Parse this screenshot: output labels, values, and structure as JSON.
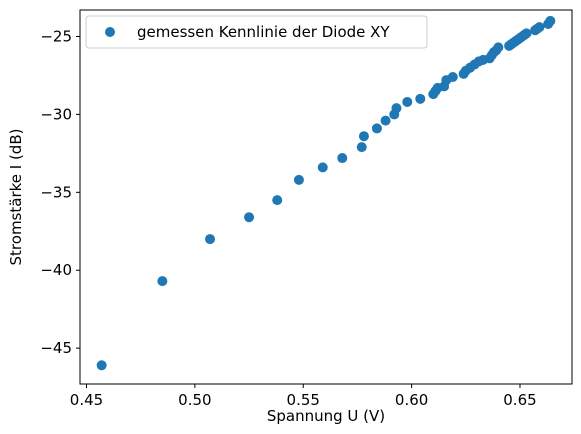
{
  "chart_data": {
    "type": "scatter",
    "title": "",
    "xlabel": "Spannung U (V)",
    "ylabel": "Stromstärke I (dB)",
    "xlim": [
      0.447,
      0.674
    ],
    "ylim": [
      -47.3,
      -23.3
    ],
    "xticks": [
      0.45,
      0.5,
      0.55,
      0.6,
      0.65
    ],
    "xtick_labels": [
      "0.45",
      "0.50",
      "0.55",
      "0.60",
      "0.65"
    ],
    "yticks": [
      -45,
      -40,
      -35,
      -30,
      -25
    ],
    "ytick_labels": [
      "−45",
      "−40",
      "−35",
      "−30",
      "−25"
    ],
    "grid": false,
    "legend_position": "top-left",
    "marker_color": "#1f77b4",
    "series": [
      {
        "name": "gemessen Kennlinie der Diode XY",
        "x": [
          0.457,
          0.485,
          0.507,
          0.525,
          0.538,
          0.548,
          0.559,
          0.568,
          0.577,
          0.578,
          0.584,
          0.588,
          0.592,
          0.593,
          0.598,
          0.604,
          0.61,
          0.611,
          0.612,
          0.615,
          0.616,
          0.619,
          0.624,
          0.625,
          0.627,
          0.629,
          0.631,
          0.633,
          0.636,
          0.637,
          0.638,
          0.639,
          0.64,
          0.645,
          0.646,
          0.647,
          0.648,
          0.649,
          0.65,
          0.651,
          0.652,
          0.653,
          0.657,
          0.658,
          0.659,
          0.663,
          0.664
        ],
        "y": [
          -46.1,
          -40.7,
          -38.0,
          -36.6,
          -35.5,
          -34.2,
          -33.4,
          -32.8,
          -32.1,
          -31.4,
          -30.9,
          -30.4,
          -30.0,
          -29.6,
          -29.2,
          -29.0,
          -28.7,
          -28.5,
          -28.3,
          -28.2,
          -27.8,
          -27.6,
          -27.4,
          -27.2,
          -27.0,
          -26.8,
          -26.6,
          -26.5,
          -26.4,
          -26.2,
          -26.0,
          -25.9,
          -25.7,
          -25.6,
          -25.5,
          -25.4,
          -25.3,
          -25.2,
          -25.1,
          -25.0,
          -24.9,
          -24.8,
          -24.6,
          -24.5,
          -24.4,
          -24.2,
          -24.0
        ]
      }
    ]
  }
}
